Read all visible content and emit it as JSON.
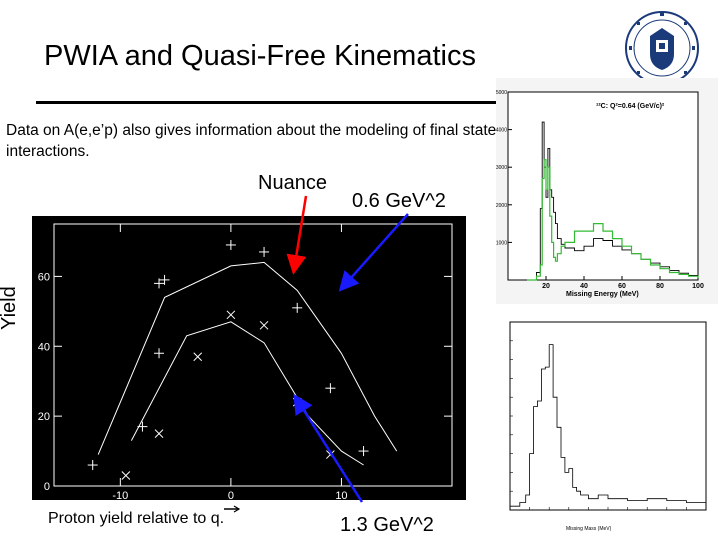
{
  "slide": {
    "title": "PWIA and Quasi-Free Kinematics",
    "body": "Data on A(e,e’p) also gives information about the modeling of final state interactions.",
    "annotations": {
      "nuance": "Nuance",
      "gev_06": "0.6 GeV^2",
      "gev_13": "1.3 GeV^2"
    },
    "yield_label": "Yield",
    "proton_label": "Proton yield relative to q."
  },
  "chart_data": [
    {
      "type": "scatter",
      "ylabel": "Yield",
      "xlabel": "Proton yield relative to q.",
      "xlim": [
        -16,
        20
      ],
      "ylim": [
        0,
        75
      ],
      "x_ticks": [
        "-10",
        "0",
        "10"
      ],
      "y_ticks": [
        "0",
        "20",
        "40",
        "60"
      ],
      "series": [
        {
          "marker": "plus",
          "points": [
            [
              -12.5,
              6
            ],
            [
              -6,
              59
            ],
            [
              -6.5,
              58
            ],
            [
              0,
              69
            ],
            [
              3,
              67
            ],
            [
              6,
              51
            ],
            [
              -6.5,
              38
            ],
            [
              -8,
              17
            ],
            [
              9,
              28
            ],
            [
              12,
              10
            ]
          ],
          "curve": [
            [
              -12,
              9
            ],
            [
              -6,
              54
            ],
            [
              0,
              63
            ],
            [
              3,
              64
            ],
            [
              6,
              56
            ],
            [
              10,
              38
            ],
            [
              13,
              20
            ],
            [
              15,
              10
            ]
          ]
        },
        {
          "marker": "x",
          "points": [
            [
              -9.5,
              3
            ],
            [
              -6.5,
              15
            ],
            [
              -3,
              37
            ],
            [
              0,
              49
            ],
            [
              3,
              46
            ],
            [
              6,
              24
            ],
            [
              9,
              9
            ]
          ],
          "curve": [
            [
              -9,
              13
            ],
            [
              -4,
              43
            ],
            [
              0,
              47
            ],
            [
              3,
              41
            ],
            [
              7,
              20
            ],
            [
              10,
              10
            ],
            [
              12,
              6
            ]
          ]
        }
      ]
    },
    {
      "type": "line",
      "title": "¹²C: Q²=0.64 (GeV/c)²",
      "xlabel": "Missing Energy (MeV)",
      "xlim": [
        0,
        100
      ],
      "ylim": [
        0,
        5000
      ],
      "x_ticks": [
        "20",
        "40",
        "60",
        "80",
        "100"
      ],
      "y_ticks": [
        "1000",
        "2000",
        "3000",
        "4000",
        "5000"
      ],
      "series": [
        {
          "color": "#000000",
          "x": [
            10,
            15,
            17,
            18,
            19,
            20,
            21,
            22,
            23,
            24,
            25,
            26,
            28,
            30,
            35,
            40,
            45,
            50,
            55,
            60,
            65,
            70,
            75,
            80,
            85,
            90,
            95,
            100
          ],
          "y": [
            0,
            200,
            1900,
            4200,
            3000,
            2200,
            3500,
            2400,
            2200,
            1800,
            1500,
            1100,
            950,
            850,
            780,
            900,
            1100,
            1050,
            900,
            800,
            700,
            550,
            450,
            350,
            250,
            180,
            120,
            60
          ]
        },
        {
          "color": "#33bb33",
          "x": [
            10,
            15,
            17,
            18,
            19,
            20,
            21,
            22,
            23,
            24,
            25,
            26,
            28,
            30,
            35,
            40,
            45,
            50,
            55,
            60,
            65,
            70,
            75,
            80,
            85,
            90,
            95,
            100
          ],
          "y": [
            0,
            100,
            400,
            2700,
            3200,
            2400,
            3000,
            1700,
            1000,
            600,
            500,
            700,
            900,
            1000,
            1300,
            1300,
            1500,
            1300,
            1100,
            900,
            700,
            550,
            400,
            300,
            200,
            150,
            100,
            60
          ]
        }
      ]
    },
    {
      "type": "line",
      "xlabel": "Missing Mass (MeV)",
      "xlim": [
        0,
        100
      ],
      "ylim": [
        0,
        100
      ],
      "series": [
        {
          "color": "#000000",
          "x": [
            0,
            5,
            8,
            10,
            12,
            14,
            16,
            18,
            20,
            22,
            24,
            26,
            28,
            30,
            32,
            34,
            36,
            40,
            45,
            50,
            60,
            70,
            80,
            90,
            100
          ],
          "y": [
            2,
            4,
            8,
            30,
            55,
            58,
            75,
            76,
            88,
            60,
            44,
            28,
            20,
            22,
            12,
            10,
            8,
            6,
            8,
            6,
            5,
            6,
            5,
            4,
            3
          ]
        }
      ]
    }
  ]
}
